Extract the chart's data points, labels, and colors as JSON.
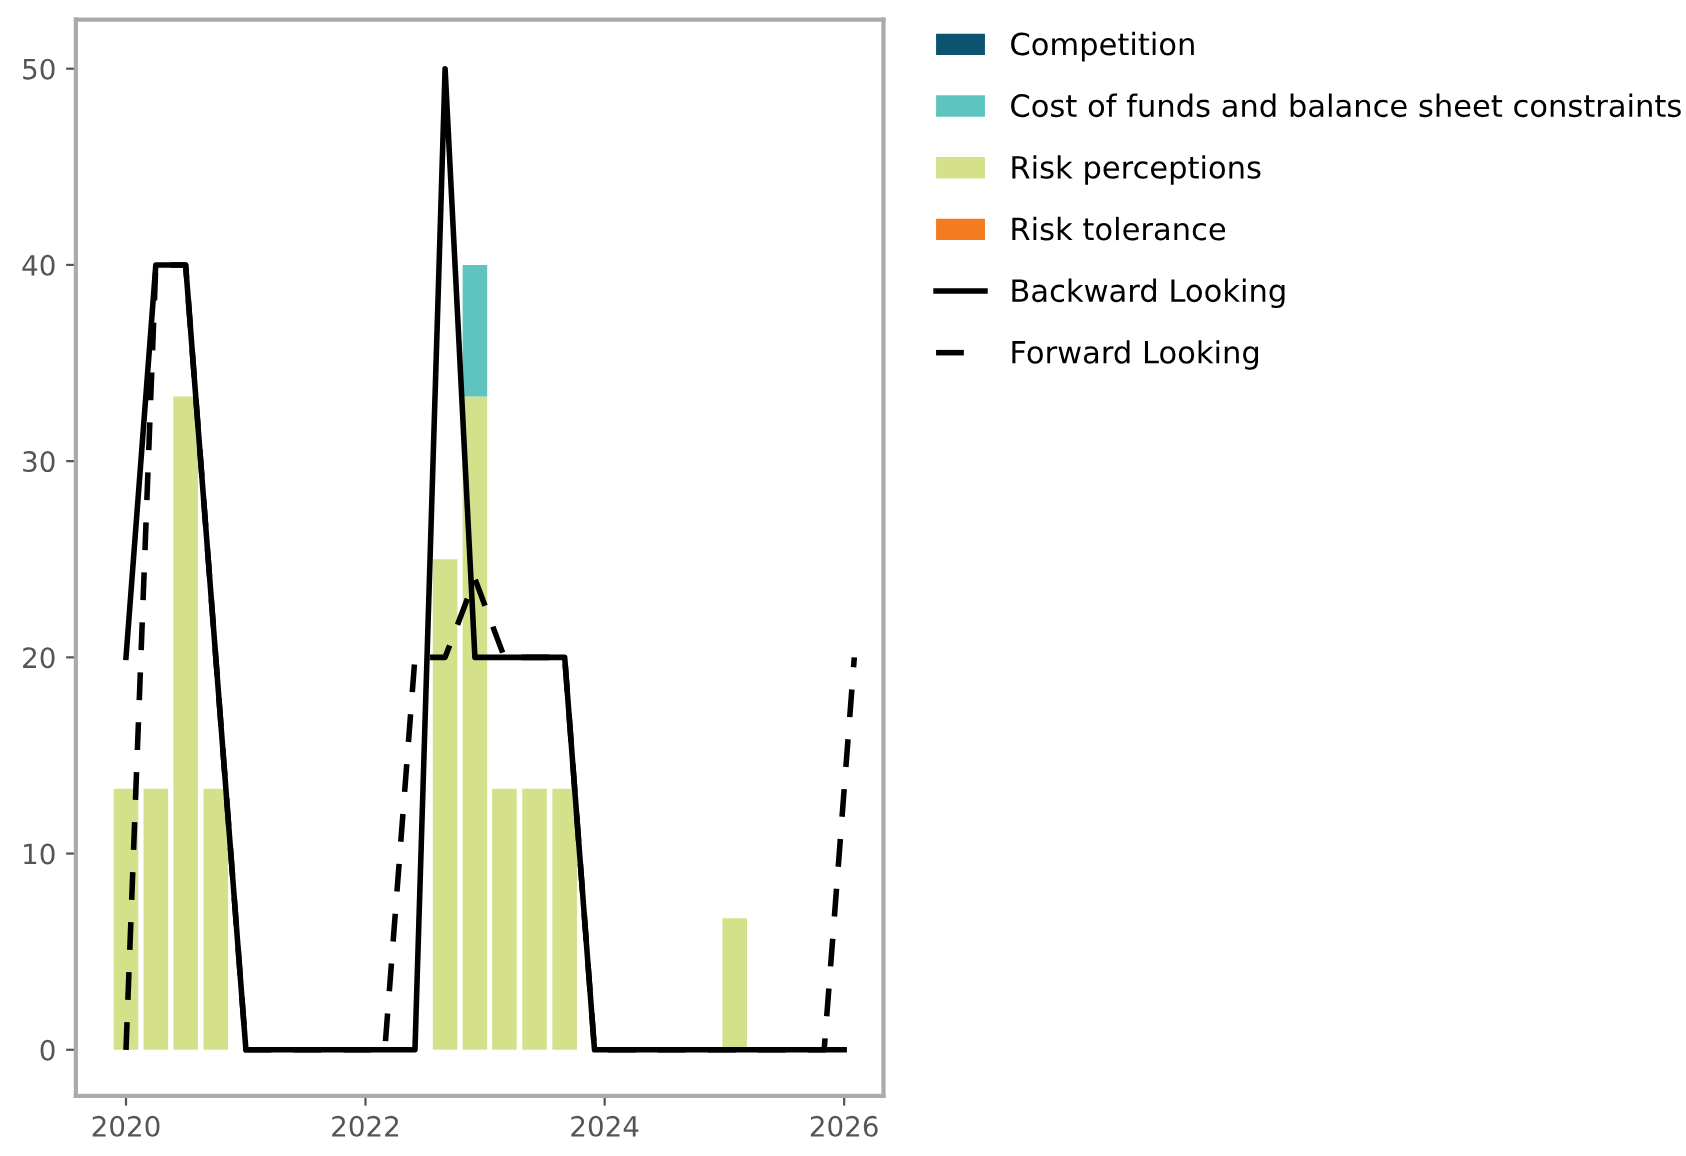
{
  "chart_data": {
    "type": "bar",
    "stacked": true,
    "x": [
      "2020-01",
      "2020-04",
      "2020-07",
      "2020-10",
      "2022-09",
      "2022-12",
      "2023-03",
      "2023-06",
      "2023-09",
      "2025-02"
    ],
    "series": [
      {
        "name": "Risk tolerance",
        "color": "#f47b20",
        "values": [
          null,
          null,
          null,
          null,
          null,
          null,
          null,
          null,
          null,
          null
        ]
      },
      {
        "name": "Risk perceptions",
        "color": "#d4e08a",
        "values": [
          13.3,
          13.3,
          33.3,
          13.3,
          25,
          33.3,
          13.3,
          13.3,
          13.3,
          6.7
        ]
      },
      {
        "name": "Cost of funds and balance sheet constraints",
        "color": "#5fc4c0",
        "values": [
          null,
          null,
          null,
          null,
          null,
          6.7,
          null,
          null,
          null,
          null
        ]
      },
      {
        "name": "Competition",
        "color": "#0b5470",
        "values": [
          null,
          null,
          null,
          null,
          null,
          null,
          null,
          null,
          null,
          null
        ]
      },
      {
        "name": "Backward Looking",
        "type": "line",
        "color": "#000000",
        "line_style": "solid",
        "x": [
          "2020-01",
          "2020-04",
          "2020-07",
          "2021-01",
          "2022-06",
          "2022-09",
          "2022-12",
          "2023-09",
          "2023-12",
          "2026-01"
        ],
        "values": [
          20,
          40,
          40,
          0,
          0,
          50,
          20,
          20,
          0,
          0
        ]
      },
      {
        "name": "Forward Looking",
        "type": "line",
        "color": "#000000",
        "line_style": "dashed",
        "x": [
          "2020-01",
          "2020-04",
          "2020-07",
          "2021-01",
          "2022-03",
          "2022-06",
          "2022-09",
          "2022-12",
          "2023-03",
          "2023-09",
          "2023-12",
          "2025-11",
          "2026-02"
        ],
        "values": [
          0,
          40,
          40,
          0,
          0,
          20,
          20,
          24,
          20,
          20,
          0,
          0,
          20
        ]
      }
    ],
    "xlim": [
      "2019-08",
      "2026-05"
    ],
    "xticks": [
      {
        "value": "2020-01",
        "label": "2020"
      },
      {
        "value": "2022-01",
        "label": "2022"
      },
      {
        "value": "2024-01",
        "label": "2024"
      },
      {
        "value": "2026-01",
        "label": "2026"
      }
    ],
    "ylim": [
      -2.35,
      52.5
    ],
    "yticks": [
      0,
      10,
      20,
      30,
      40,
      50
    ],
    "grid": false,
    "legend": "right",
    "marker": "none"
  }
}
